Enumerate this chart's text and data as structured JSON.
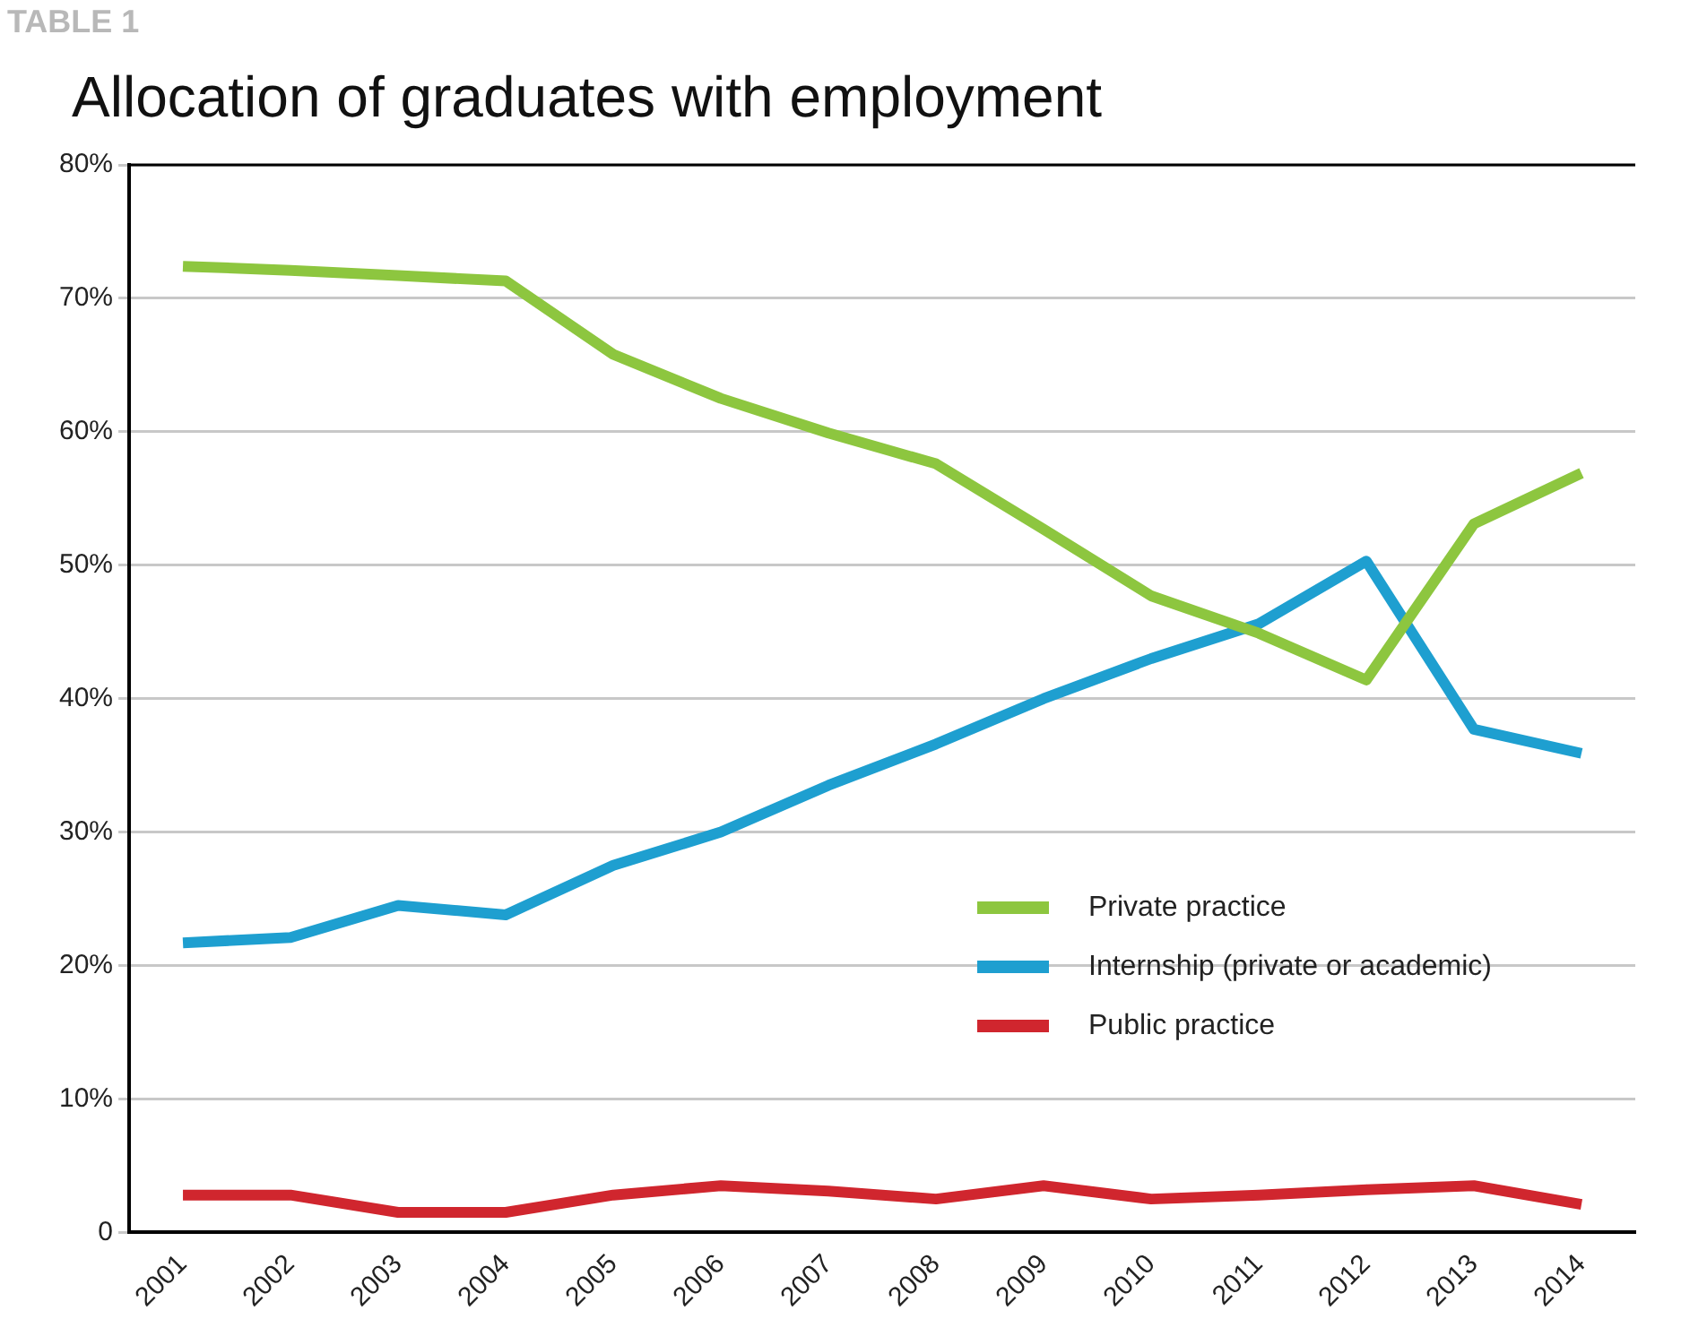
{
  "chart_data": {
    "type": "line",
    "title": "Allocation of graduates with employment",
    "annotations": [
      "TABLE 1"
    ],
    "categories": [
      "2001",
      "2002",
      "2003",
      "2004",
      "2005",
      "2006",
      "2007",
      "2008",
      "2009",
      "2010",
      "2011",
      "2012",
      "2013",
      "2014"
    ],
    "series": [
      {
        "name": "Private practice",
        "color": "#8dc63f",
        "values": [
          72.4,
          72.1,
          71.7,
          71.3,
          65.8,
          62.5,
          59.9,
          57.6,
          52.7,
          47.7,
          44.9,
          41.4,
          53.1,
          56.9
        ]
      },
      {
        "name": "Internship (private or academic)",
        "color": "#1e9fd0",
        "values": [
          21.7,
          22.1,
          24.5,
          23.8,
          27.5,
          30,
          33.5,
          36.6,
          40,
          43,
          45.6,
          50.3,
          37.7,
          35.9
        ]
      },
      {
        "name": "Public practice",
        "color": "#d0262e",
        "values": [
          2.8,
          2.8,
          1.5,
          1.5,
          2.8,
          3.5,
          3.1,
          2.5,
          3.5,
          2.5,
          2.8,
          3.2,
          3.5,
          2.1
        ]
      }
    ],
    "ylim": [
      0,
      80
    ],
    "yticks": [
      {
        "value": 0,
        "label": "0"
      },
      {
        "value": 10,
        "label": "10%"
      },
      {
        "value": 20,
        "label": "20%"
      },
      {
        "value": 30,
        "label": "30%"
      },
      {
        "value": 40,
        "label": "40%"
      },
      {
        "value": 50,
        "label": "50%"
      },
      {
        "value": 60,
        "label": "60%"
      },
      {
        "value": 70,
        "label": "70%"
      },
      {
        "value": 80,
        "label": "80%"
      }
    ],
    "grid": "y",
    "legend": "bottom right",
    "marker": "none",
    "line_style": "solid"
  }
}
